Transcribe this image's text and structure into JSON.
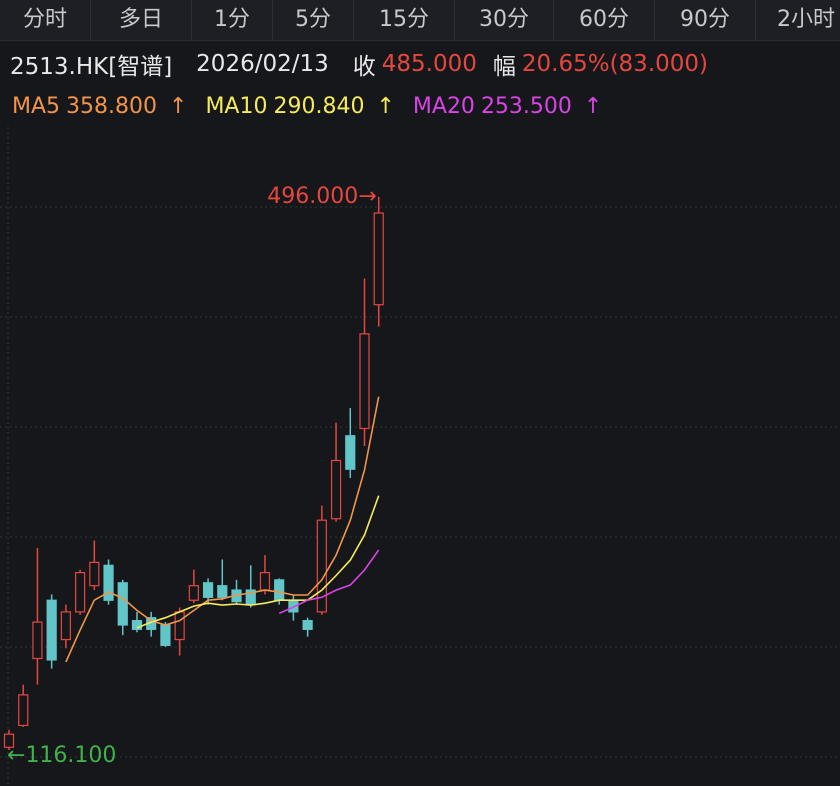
{
  "tabs": [
    "分时",
    "多日",
    "1分",
    "5分",
    "15分",
    "30分",
    "60分",
    "90分",
    "2小时"
  ],
  "info": {
    "symbol": "2513.HK[智谱]",
    "date": "2026/02/13",
    "close_label": "收",
    "close": "485.000",
    "change_label": "幅",
    "change": "20.65%(83.000)"
  },
  "chart_data": {
    "type": "candlestick",
    "categories": [
      null,
      null,
      null,
      null,
      null,
      null,
      null,
      null,
      null,
      null,
      null,
      null,
      null,
      null,
      null,
      null,
      null,
      null,
      null,
      null,
      null,
      null,
      null,
      null,
      null,
      null,
      null
    ],
    "open": [
      118,
      133,
      179,
      219,
      192,
      211,
      229,
      243,
      231,
      205,
      207,
      202,
      192,
      219,
      231,
      229,
      226,
      226,
      226,
      233,
      219,
      205,
      211,
      275,
      332,
      337,
      422
    ],
    "high": [
      130,
      161,
      255,
      223,
      216,
      240,
      260,
      247,
      233,
      211,
      211,
      204,
      214,
      240,
      234,
      247,
      233,
      243,
      250,
      234,
      223,
      207,
      284,
      341,
      351,
      440,
      496
    ],
    "low": [
      116.1,
      132,
      161,
      172,
      186,
      209,
      226,
      216,
      195,
      197,
      194,
      187,
      181,
      217,
      216,
      219,
      216,
      214,
      223,
      216,
      205,
      194,
      209,
      273,
      303,
      325,
      407
    ],
    "close": [
      127,
      154,
      204,
      178,
      211,
      238,
      245,
      219,
      202,
      199,
      199,
      188,
      211,
      229,
      221,
      221,
      218,
      216,
      238,
      219,
      211,
      199,
      274,
      315,
      309,
      402,
      485
    ],
    "up_color": "#e5473f",
    "down_color": "#62c6c9",
    "series": [
      {
        "name": "MA5",
        "label": "358.800",
        "arrow": "↑",
        "color": "#f0954a",
        "values": [
          null,
          null,
          null,
          null,
          176.6,
          198.5,
          219,
          224.6,
          220.5,
          212,
          205,
          202,
          205,
          212,
          219,
          220,
          222.6,
          224,
          226,
          224.6,
          222.6,
          222.6,
          233,
          250,
          274,
          308.5,
          358.8
        ]
      },
      {
        "name": "MA10",
        "label": "290.840",
        "arrow": "↑",
        "color": "#f5ea5a",
        "values": [
          null,
          null,
          null,
          null,
          null,
          null,
          null,
          null,
          null,
          200,
          204,
          207,
          211,
          215,
          217,
          215.7,
          216.4,
          215.7,
          217,
          219,
          219,
          219,
          226,
          236,
          246.6,
          263.8,
          290.84
        ]
      },
      {
        "name": "MA20",
        "label": "253.500",
        "arrow": "↑",
        "color": "#d844e6",
        "values": [
          null,
          null,
          null,
          null,
          null,
          null,
          null,
          null,
          null,
          null,
          null,
          null,
          null,
          null,
          null,
          null,
          null,
          null,
          null,
          210,
          214.3,
          219,
          221,
          226,
          229.5,
          239.8,
          253.5
        ]
      }
    ],
    "ylim": [
      91.4,
      564.7
    ],
    "max_label": {
      "value": 496,
      "label": "496.000",
      "arrow": "→"
    },
    "min_label": {
      "value": 116.1,
      "label": "116.100",
      "arrow": "←"
    }
  }
}
